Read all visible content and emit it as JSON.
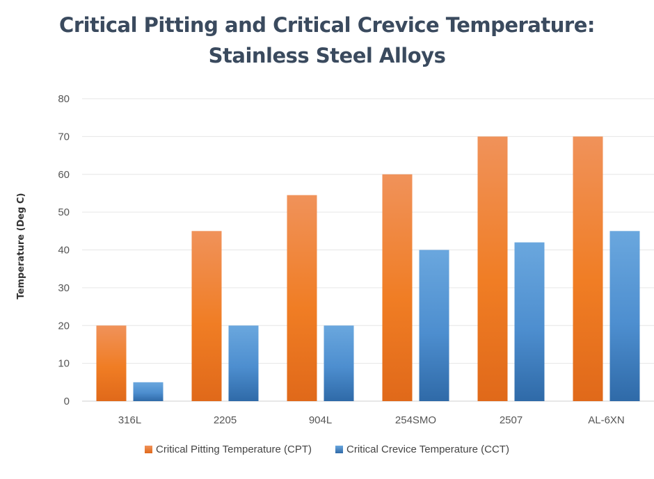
{
  "chart_data": {
    "type": "bar",
    "title": [
      "Critical Pitting and Critical Crevice Temperature:",
      "Stainless Steel Alloys"
    ],
    "xlabel": "",
    "ylabel": "Temperature (Deg C)",
    "ylim": [
      0,
      80
    ],
    "yticks": [
      0,
      10,
      20,
      30,
      40,
      50,
      60,
      70,
      80
    ],
    "grid": true,
    "legend_position": "bottom",
    "categories": [
      "316L",
      "2205",
      "904L",
      "254SMO",
      "2507",
      "AL-6XN"
    ],
    "series": [
      {
        "name": "Critical Pitting Temperature (CPT)",
        "values": [
          20,
          45,
          54.5,
          60,
          70,
          70
        ],
        "color_top": "#f0925a",
        "color_mid": "#f07d24",
        "color_bottom": "#e0691a"
      },
      {
        "name": "Critical Crevice Temperature (CCT)",
        "values": [
          5,
          20,
          20,
          40,
          42,
          45
        ],
        "color_top": "#6aa7de",
        "color_mid": "#4d8ecf",
        "color_bottom": "#2f6aa8"
      }
    ]
  }
}
